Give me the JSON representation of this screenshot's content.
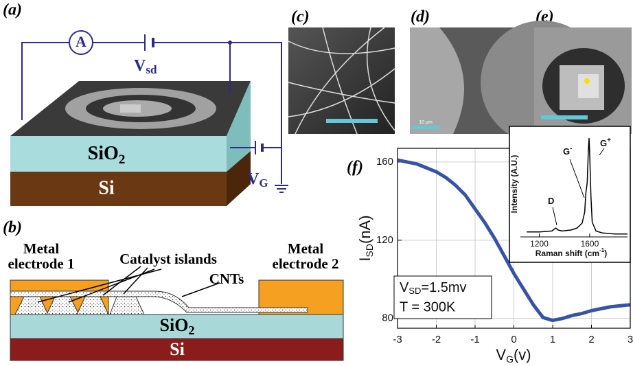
{
  "panel_labels": [
    "(a)",
    "(b)",
    "(c)",
    "(d)",
    "(e)",
    "(f)"
  ],
  "panel_a": {
    "ammeter": "A",
    "vsd": {
      "main": "V",
      "sub": "sd"
    },
    "oxide": {
      "main": "SiO",
      "sub": "2"
    },
    "substrate": "Si",
    "vg": {
      "main": "V",
      "sub": "G"
    }
  },
  "panel_b": {
    "electrode_1": [
      "Metal",
      "electrode 1"
    ],
    "electrode_2": [
      "Metal",
      "electrode 2"
    ],
    "catalyst": "Catalyst islands",
    "cnts": "CNTs",
    "oxide": {
      "main": "SiO",
      "sub": "2"
    },
    "substrate": "Si"
  },
  "panel_d": {
    "scale_bar": "10 μm"
  },
  "chart_data": [
    {
      "type": "line",
      "xlabel": {
        "main": "V",
        "sub": "G",
        "unit": "(v)"
      },
      "ylabel": {
        "main": "I",
        "sub": "SD",
        "unit": "(nA)"
      },
      "annotations": [
        {
          "main": "V",
          "sub": "SD",
          "rest": "=1.5mv"
        },
        "T = 300K"
      ],
      "x": [
        -3,
        -2.75,
        -2.5,
        -2.25,
        -2,
        -1.75,
        -1.5,
        -1.25,
        -1,
        -0.75,
        -0.5,
        -0.25,
        0,
        0.25,
        0.5,
        0.75,
        1,
        1.25,
        1.5,
        1.75,
        2,
        2.25,
        2.5,
        2.75,
        3
      ],
      "values": [
        161,
        160,
        159,
        157,
        155,
        152,
        148,
        143,
        136,
        129,
        121,
        112,
        103,
        95,
        87,
        80.5,
        79,
        80,
        81.5,
        82.5,
        84,
        85,
        86,
        86.5,
        87
      ],
      "color": "#3653a6",
      "xlim": [
        -3,
        3
      ],
      "xticks": [
        -3,
        -2,
        -1,
        0,
        1,
        2,
        3
      ],
      "ylim": [
        75,
        167
      ],
      "yticks": [
        80,
        120,
        160
      ],
      "grid": true
    },
    {
      "type": "line",
      "xlabel": {
        "main": "Raman shift (cm",
        "sup": "-1",
        "end": ")"
      },
      "ylabel": "Intensity (A.U.)",
      "peak_labels": [
        {
          "main": "D"
        },
        {
          "main": "G",
          "sup": "-"
        },
        {
          "main": "G",
          "sup": "+"
        }
      ],
      "x": [
        1100,
        1200,
        1300,
        1330,
        1350,
        1380,
        1450,
        1500,
        1540,
        1560,
        1570,
        1580,
        1590,
        1595,
        1600,
        1610,
        1620,
        1650,
        1700,
        1800,
        1900
      ],
      "values": [
        0.05,
        0.05,
        0.06,
        0.09,
        0.07,
        0.06,
        0.07,
        0.09,
        0.14,
        0.25,
        0.45,
        0.55,
        0.9,
        1.0,
        0.85,
        0.4,
        0.15,
        0.06,
        0.04,
        0.03,
        0.03
      ],
      "color": "#000000",
      "xlim": [
        1050,
        1900
      ],
      "xticks": [
        1200,
        1600
      ],
      "ylim": [
        0,
        1.08
      ],
      "grid": false
    }
  ]
}
